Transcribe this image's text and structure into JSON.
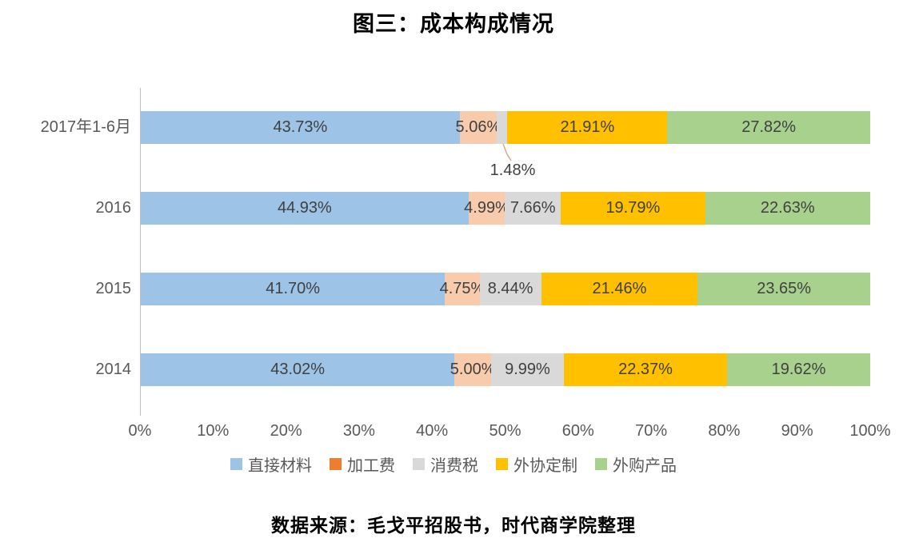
{
  "title": "图三：成本构成情况",
  "source_note": "数据来源：毛戈平招股书，时代商学院整理",
  "chart_data": {
    "type": "bar",
    "orientation": "horizontal",
    "stacked": true,
    "unit": "%",
    "title": "图三：成本构成情况",
    "categories": [
      "2017年1-6月",
      "2016",
      "2015",
      "2014"
    ],
    "series": [
      {
        "name": "直接材料",
        "color": "#9DC3E6",
        "legend_color": "#9DC3E6",
        "values": [
          43.73,
          44.93,
          41.7,
          43.02
        ]
      },
      {
        "name": "加工费",
        "color": "#F8CBAD",
        "legend_color": "#ED7D31",
        "values": [
          5.06,
          4.99,
          4.75,
          5.0
        ]
      },
      {
        "name": "消费税",
        "color": "#D9D9D9",
        "legend_color": "#D9D9D9",
        "values": [
          1.48,
          7.66,
          8.44,
          9.99
        ]
      },
      {
        "name": "外协定制",
        "color": "#FFC000",
        "legend_color": "#FFC000",
        "values": [
          21.91,
          19.79,
          21.46,
          22.37
        ]
      },
      {
        "name": "外购产品",
        "color": "#A9D18E",
        "legend_color": "#A9D18E",
        "values": [
          27.82,
          22.63,
          23.65,
          19.62
        ]
      }
    ],
    "data_labels": [
      [
        "43.73%",
        "5.06%",
        "1.48%",
        "21.91%",
        "27.82%"
      ],
      [
        "44.93%",
        "4.99%",
        "7.66%",
        "19.79%",
        "22.63%"
      ],
      [
        "41.70%",
        "4.75%",
        "8.44%",
        "21.46%",
        "23.65%"
      ],
      [
        "43.02%",
        "5.00%",
        "9.99%",
        "22.37%",
        "19.62%"
      ]
    ],
    "callout": {
      "category_index": 0,
      "series_index": 2,
      "label": "1.48%"
    },
    "x_axis": {
      "min": 0,
      "max": 100,
      "tick_labels": [
        "0%",
        "10%",
        "20%",
        "30%",
        "40%",
        "50%",
        "60%",
        "70%",
        "80%",
        "90%",
        "100%"
      ]
    },
    "legend": {
      "position": "bottom",
      "entries": [
        "直接材料",
        "加工费",
        "消费税",
        "外协定制",
        "外购产品"
      ]
    },
    "grid": false
  }
}
